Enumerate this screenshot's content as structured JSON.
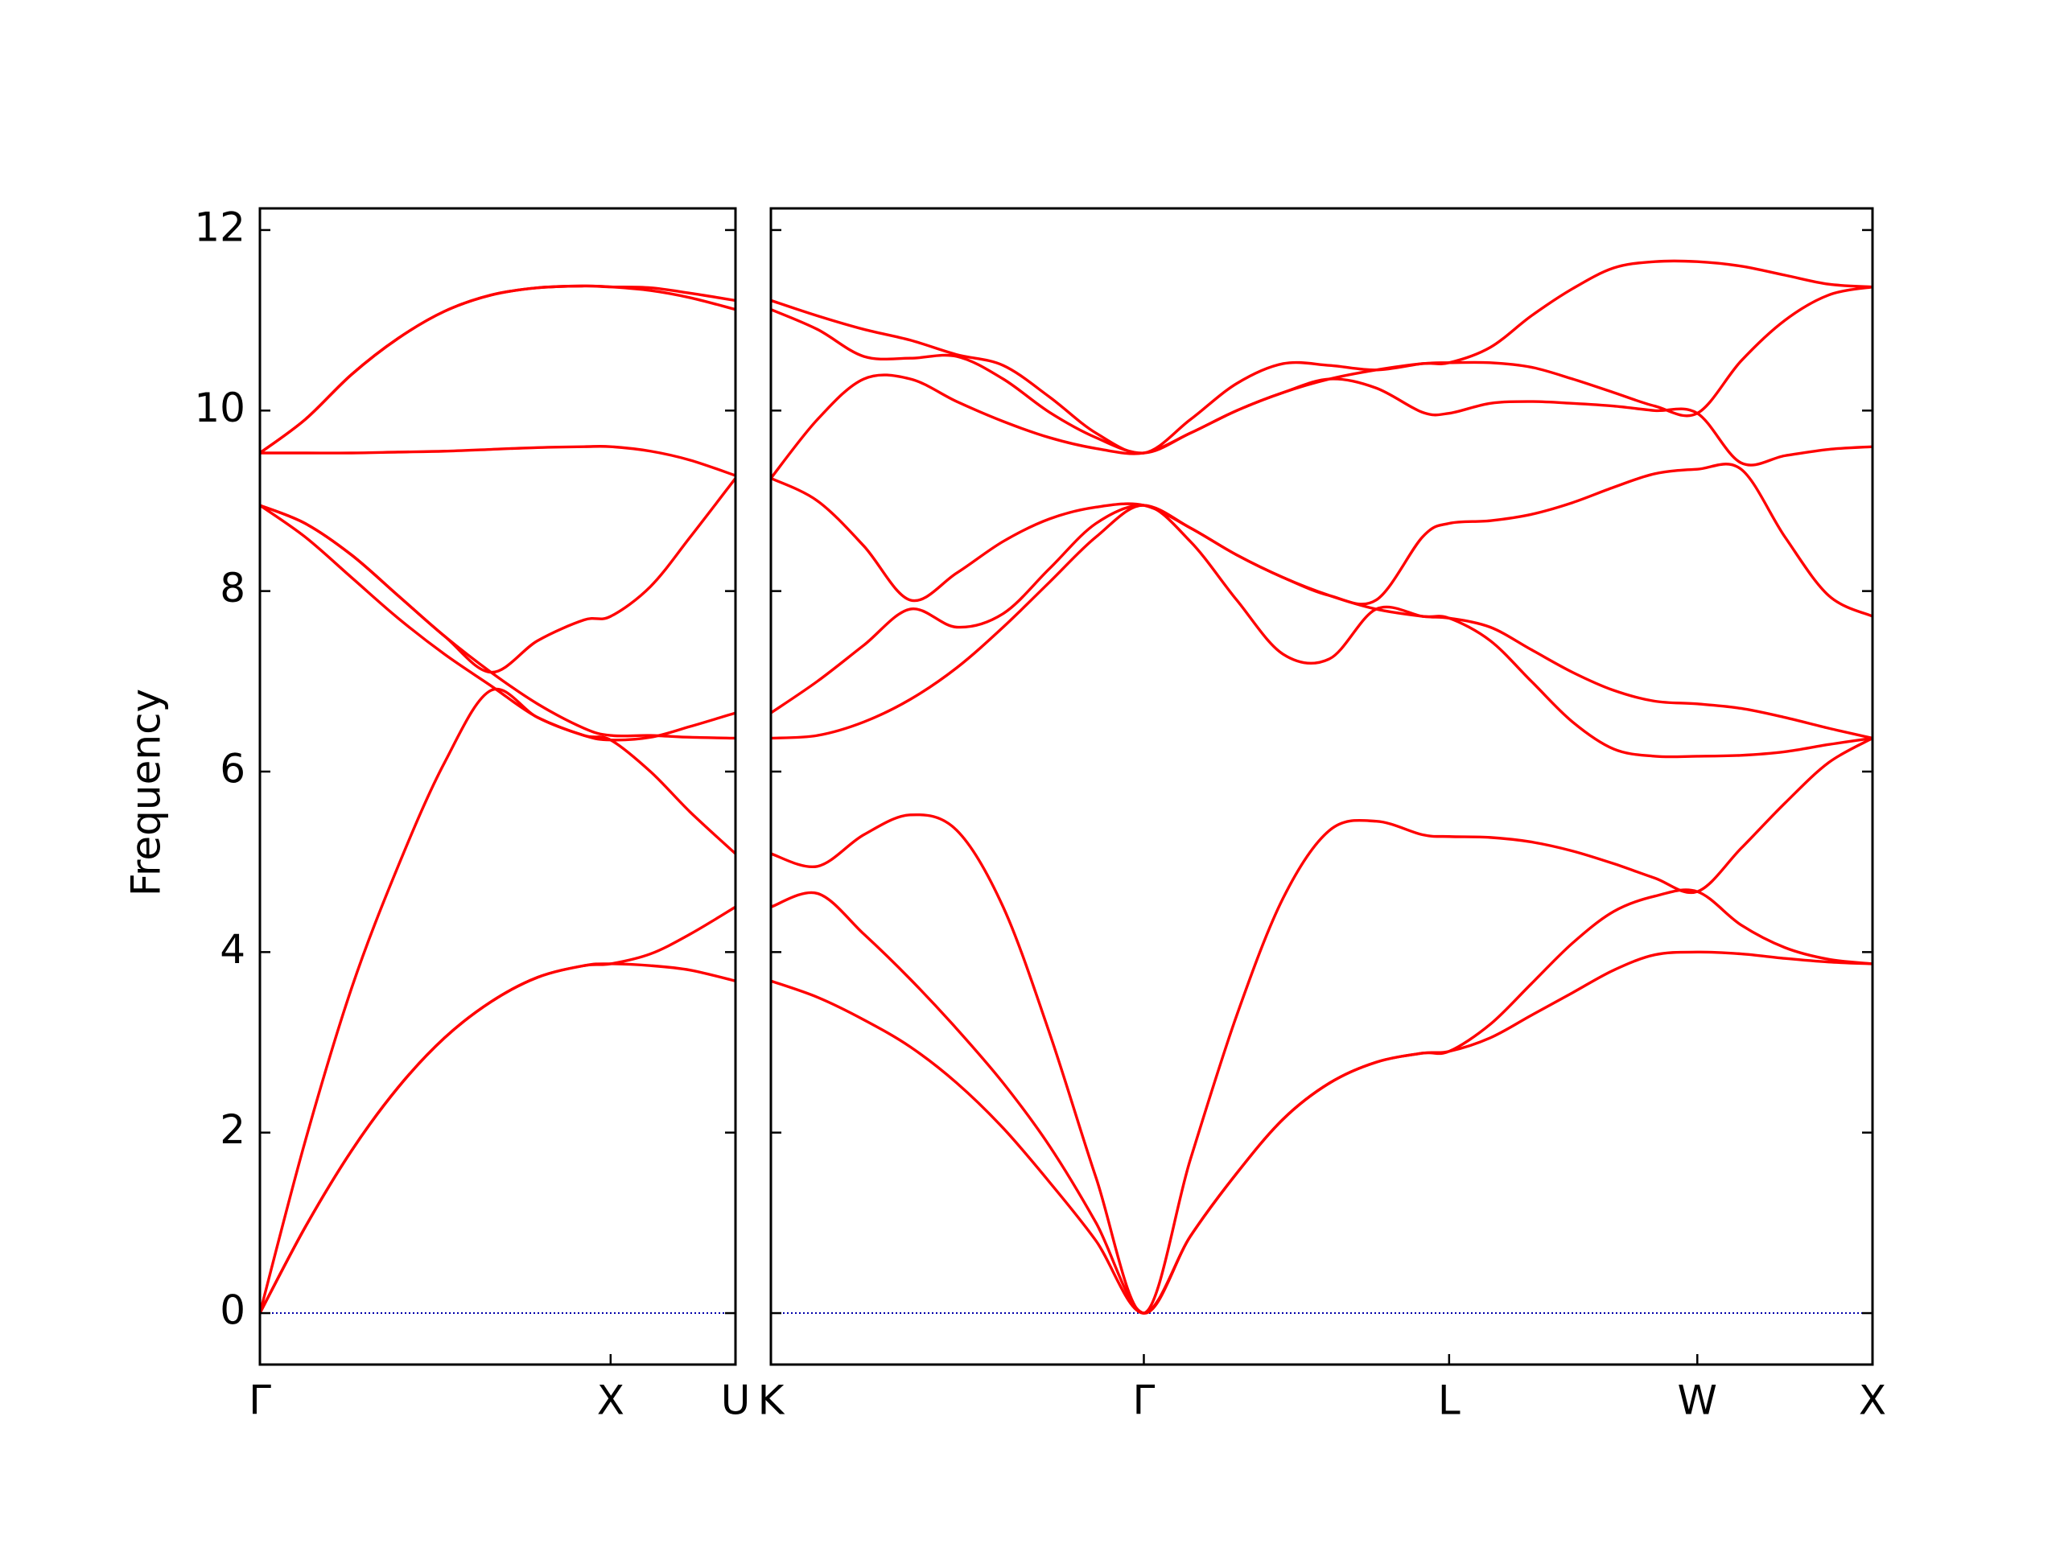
{
  "chart_data": [
    {
      "type": "line",
      "ylabel": "Frequency",
      "ytick_labels": true,
      "color": "#ff0000",
      "x": [
        0,
        0.34,
        0.69,
        1.04,
        1.39,
        1.74,
        2.09,
        2.44,
        2.64,
        2.94,
        3.24,
        3.58
      ],
      "xlim": [
        0,
        3.58
      ],
      "xticks": [
        {
          "value": 0,
          "label": "Γ"
        },
        {
          "value": 2.64,
          "label": "X"
        },
        {
          "value": 3.58,
          "label": "U"
        }
      ],
      "ylim": [
        -0.57,
        12.24
      ],
      "yticks": [
        0,
        2,
        4,
        6,
        8,
        10,
        12
      ],
      "reference_line": {
        "y": 0,
        "color": "#0000aa",
        "style": "dotted"
      },
      "series": [
        {
          "values": [
            0,
            0.95,
            1.8,
            2.5,
            3.05,
            3.45,
            3.72,
            3.85,
            3.87,
            3.85,
            3.8,
            3.68
          ]
        },
        {
          "values": [
            0,
            0.95,
            1.8,
            2.5,
            3.05,
            3.45,
            3.72,
            3.85,
            3.87,
            3.98,
            4.2,
            4.5
          ]
        },
        {
          "values": [
            0,
            1.9,
            3.6,
            4.95,
            6.1,
            6.9,
            6.6,
            6.4,
            6.35,
            6.0,
            5.55,
            5.09
          ]
        },
        {
          "values": [
            8.95,
            8.6,
            8.15,
            7.7,
            7.3,
            6.95,
            6.6,
            6.4,
            6.35,
            6.38,
            6.5,
            6.65
          ]
        },
        {
          "values": [
            8.95,
            8.75,
            8.4,
            7.95,
            7.5,
            7.1,
            6.75,
            6.48,
            6.4,
            6.4,
            6.38,
            6.37
          ]
        },
        {
          "values": [
            8.95,
            8.75,
            8.4,
            7.95,
            7.5,
            7.1,
            7.45,
            7.68,
            7.72,
            8.05,
            8.6,
            9.25
          ]
        },
        {
          "values": [
            9.53,
            9.53,
            9.53,
            9.54,
            9.55,
            9.57,
            9.59,
            9.6,
            9.6,
            9.55,
            9.45,
            9.28
          ]
        },
        {
          "values": [
            9.53,
            9.9,
            10.4,
            10.8,
            11.1,
            11.28,
            11.36,
            11.38,
            11.37,
            11.33,
            11.25,
            11.12
          ]
        },
        {
          "values": [
            9.53,
            9.9,
            10.4,
            10.8,
            11.1,
            11.28,
            11.36,
            11.38,
            11.37,
            11.36,
            11.3,
            11.22
          ]
        }
      ]
    },
    {
      "type": "line",
      "ytick_labels": false,
      "color": "#ff0000",
      "x": [
        0,
        0.35,
        0.7,
        1.05,
        1.4,
        1.75,
        2.1,
        2.45,
        2.81,
        3.16,
        3.51,
        3.86,
        4.21,
        4.56,
        4.91,
        5.11,
        5.42,
        5.73,
        6.04,
        6.35,
        6.66,
        6.98,
        7.31,
        7.64,
        7.97,
        8.3
      ],
      "xlim": [
        0,
        8.3
      ],
      "xticks": [
        {
          "value": 0,
          "label": "K"
        },
        {
          "value": 2.81,
          "label": "Γ"
        },
        {
          "value": 5.11,
          "label": "L"
        },
        {
          "value": 6.98,
          "label": "W"
        },
        {
          "value": 8.3,
          "label": "X"
        }
      ],
      "ylim": [
        -0.57,
        12.24
      ],
      "yticks": [
        0,
        2,
        4,
        6,
        8,
        10,
        12
      ],
      "reference_line": {
        "y": 0,
        "color": "#0000aa",
        "style": "dotted"
      },
      "series": [
        {
          "values": [
            3.68,
            3.5,
            3.25,
            2.95,
            2.55,
            2.05,
            1.45,
            0.8,
            0,
            0.85,
            1.55,
            2.15,
            2.55,
            2.78,
            2.88,
            2.9,
            3.05,
            3.3,
            3.55,
            3.8,
            3.97,
            4.0,
            3.98,
            3.93,
            3.89,
            3.87
          ]
        },
        {
          "values": [
            4.5,
            4.65,
            4.2,
            3.7,
            3.15,
            2.55,
            1.85,
            1.0,
            0,
            0.85,
            1.55,
            2.15,
            2.55,
            2.78,
            2.88,
            2.9,
            3.2,
            3.65,
            4.1,
            4.45,
            4.62,
            4.67,
            4.3,
            4.05,
            3.92,
            3.87
          ]
        },
        {
          "values": [
            5.09,
            4.95,
            5.3,
            5.52,
            5.35,
            4.5,
            3.1,
            1.5,
            0,
            1.7,
            3.3,
            4.6,
            5.35,
            5.45,
            5.3,
            5.28,
            5.27,
            5.22,
            5.12,
            4.98,
            4.82,
            4.67,
            5.15,
            5.65,
            6.1,
            6.37
          ]
        },
        {
          "values": [
            6.37,
            6.4,
            6.55,
            6.8,
            7.15,
            7.6,
            8.1,
            8.6,
            8.95,
            8.55,
            7.9,
            7.3,
            7.25,
            7.8,
            7.72,
            7.7,
            7.45,
            7.0,
            6.55,
            6.25,
            6.17,
            6.17,
            6.18,
            6.22,
            6.3,
            6.37
          ]
        },
        {
          "values": [
            6.65,
            7.0,
            7.4,
            7.8,
            7.6,
            7.75,
            8.25,
            8.75,
            8.95,
            8.7,
            8.4,
            8.15,
            7.95,
            7.8,
            7.72,
            7.7,
            7.6,
            7.35,
            7.1,
            6.9,
            6.78,
            6.75,
            6.7,
            6.6,
            6.48,
            6.37
          ]
        },
        {
          "values": [
            9.25,
            9.0,
            8.5,
            7.9,
            8.2,
            8.55,
            8.8,
            8.93,
            8.95,
            8.7,
            8.4,
            8.15,
            7.95,
            7.9,
            8.6,
            8.75,
            8.78,
            8.85,
            8.98,
            9.15,
            9.3,
            9.35,
            9.35,
            8.6,
            7.95,
            7.72
          ]
        },
        {
          "values": [
            9.25,
            9.9,
            10.35,
            10.35,
            10.1,
            9.88,
            9.7,
            9.58,
            9.53,
            9.75,
            10.0,
            10.2,
            10.35,
            10.25,
            9.98,
            9.97,
            10.08,
            10.1,
            10.08,
            10.05,
            10.0,
            9.97,
            9.42,
            9.5,
            9.57,
            9.6
          ]
        },
        {
          "values": [
            11.12,
            10.9,
            10.6,
            10.58,
            10.6,
            10.35,
            9.98,
            9.7,
            9.53,
            9.75,
            10.0,
            10.2,
            10.35,
            10.45,
            10.52,
            10.53,
            10.53,
            10.48,
            10.35,
            10.2,
            10.05,
            9.97,
            10.55,
            11.0,
            11.28,
            11.37
          ]
        },
        {
          "values": [
            11.22,
            11.05,
            10.9,
            10.78,
            10.62,
            10.5,
            10.15,
            9.75,
            9.53,
            9.9,
            10.3,
            10.52,
            10.5,
            10.45,
            10.52,
            10.53,
            10.7,
            11.05,
            11.35,
            11.58,
            11.65,
            11.65,
            11.6,
            11.5,
            11.4,
            11.37
          ]
        }
      ]
    }
  ]
}
